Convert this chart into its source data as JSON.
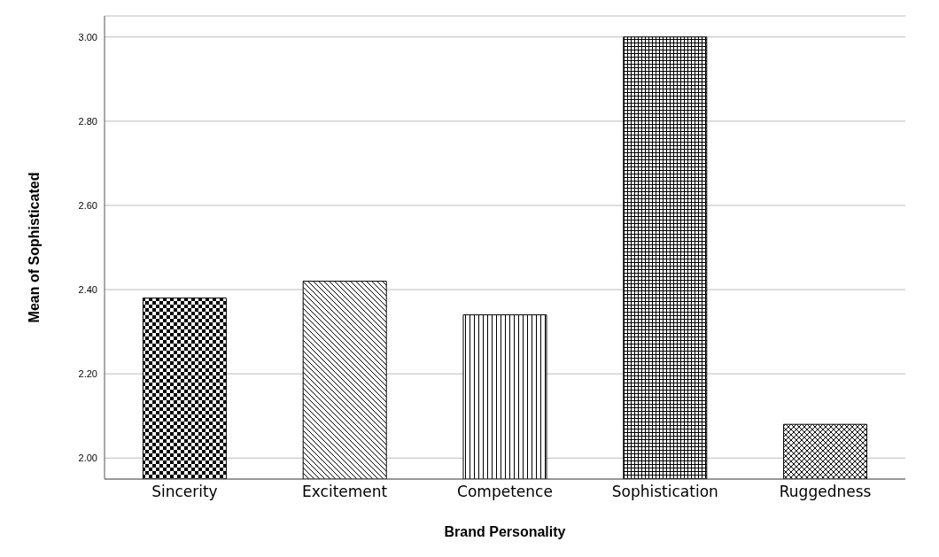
{
  "chart_data": {
    "type": "bar",
    "xlabel": "Brand Personality",
    "ylabel": "Mean of Sophisticated",
    "categories": [
      "Sincerity",
      "Excitement",
      "Competence",
      "Sophistication",
      "Ruggedness"
    ],
    "values": [
      2.38,
      2.42,
      2.34,
      3.0,
      2.08
    ],
    "colors": [
      "#000000",
      "#000000",
      "#000000",
      "#000000",
      "#000000"
    ],
    "ylim": [
      1.95,
      3.05
    ],
    "yticks": [
      {
        "value": 2,
        "label": "2.00"
      },
      {
        "value": 2.2,
        "label": "2.20"
      },
      {
        "value": 2.4,
        "label": "2.40"
      },
      {
        "value": 2.6,
        "label": "2.60"
      },
      {
        "value": 2.8,
        "label": "2.80"
      },
      {
        "value": 3,
        "label": "3.00"
      }
    ],
    "grid": "y"
  }
}
